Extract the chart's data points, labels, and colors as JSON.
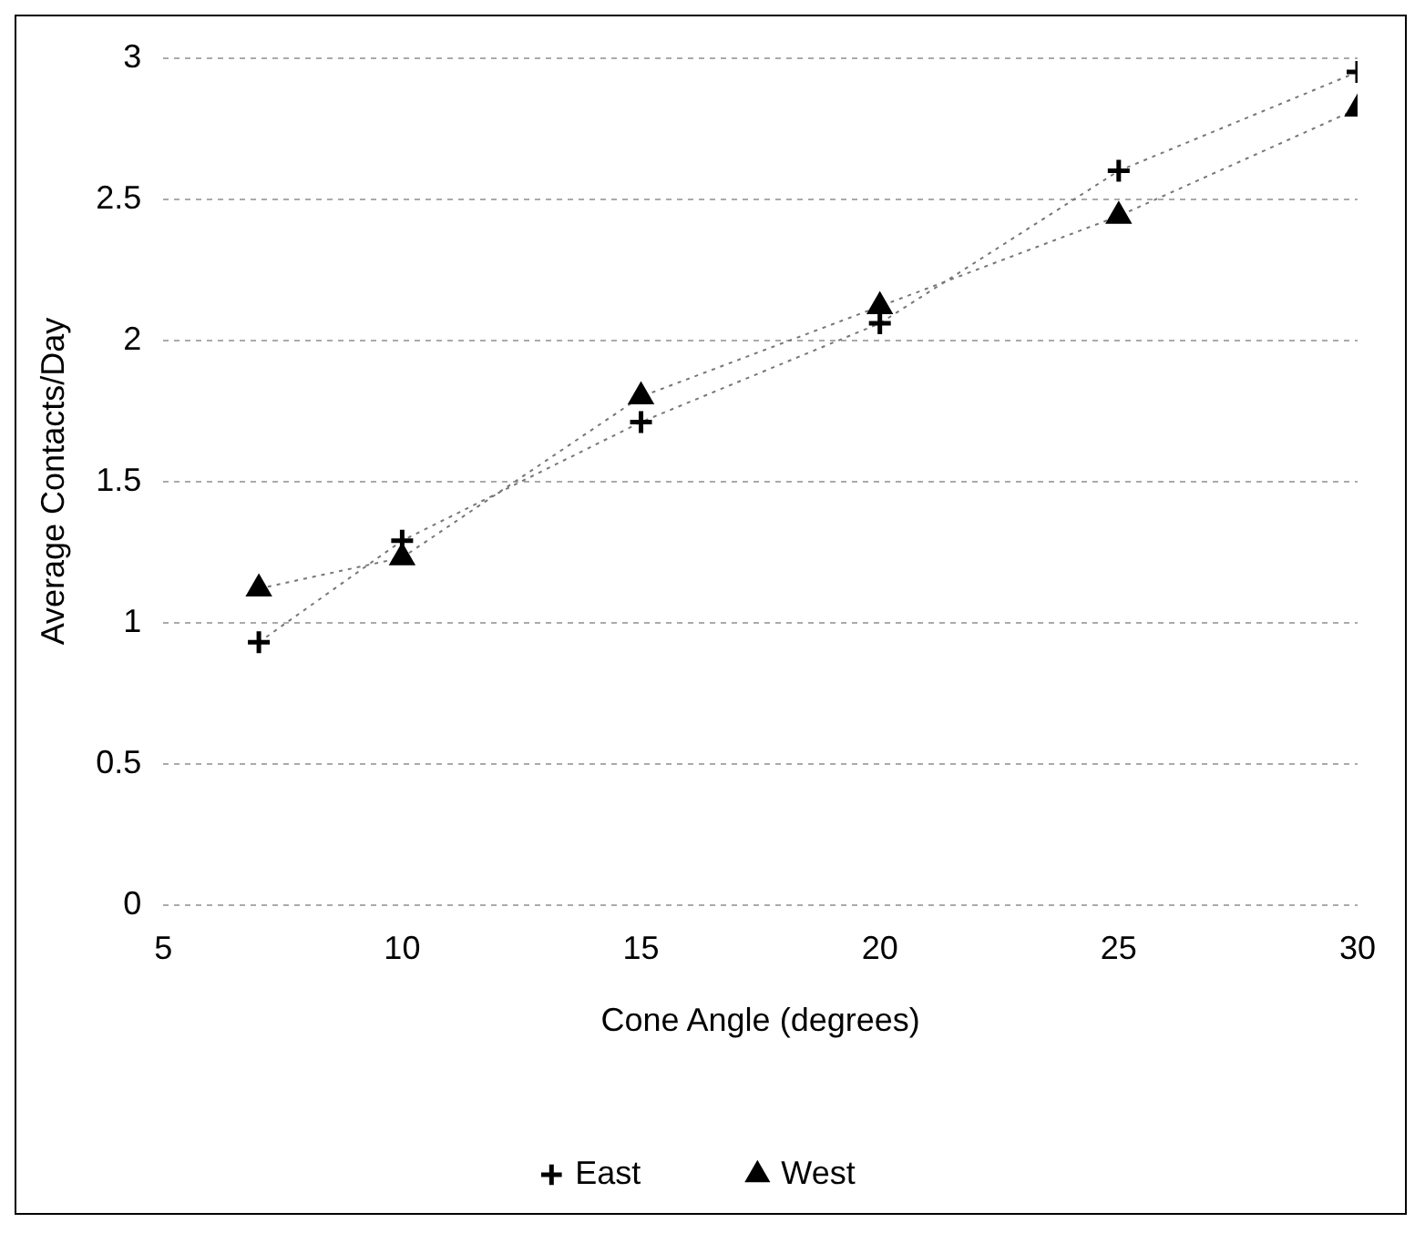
{
  "chart_data": {
    "type": "line",
    "xlabel": "Cone Angle (degrees)",
    "ylabel": "Average Contacts/Day",
    "x": [
      7,
      10,
      15,
      20,
      25,
      30
    ],
    "series": [
      {
        "name": "East",
        "color": "#000000",
        "marker": "cross",
        "values": [
          0.93,
          1.29,
          1.71,
          2.06,
          2.6,
          2.95
        ]
      },
      {
        "name": "West",
        "color": "#000000",
        "marker": "triangle",
        "values": [
          1.12,
          1.23,
          1.8,
          2.12,
          2.44,
          2.82
        ]
      }
    ],
    "xlim": [
      5,
      30
    ],
    "xticks": [
      5,
      10,
      15,
      20,
      25,
      30
    ],
    "ylim": [
      0,
      3
    ],
    "yticks": [
      0,
      0.5,
      1,
      1.5,
      2,
      2.5,
      3
    ],
    "grid": "y",
    "legend": "bottom",
    "line_style": "dotted"
  }
}
